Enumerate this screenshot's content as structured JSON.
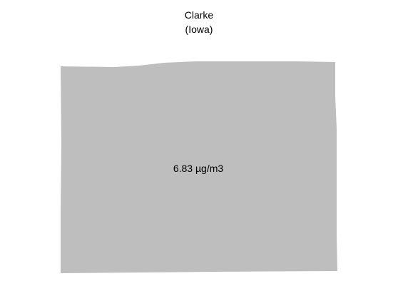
{
  "map": {
    "title_line1": "Clarke",
    "title_line2": "(Iowa)",
    "region": {
      "name": "Clarke",
      "value_label": "6.83 µg/m3",
      "fill": "#bebebe"
    },
    "background": "#ffffff"
  }
}
